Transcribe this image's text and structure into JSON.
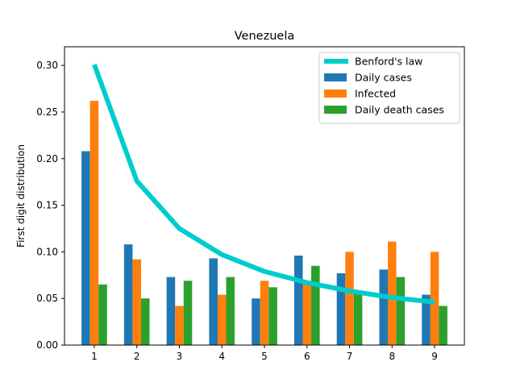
{
  "chart_data": {
    "type": "bar",
    "title": "Venezuela",
    "xlabel": "",
    "ylabel": "First digit distribution",
    "categories": [
      "1",
      "2",
      "3",
      "4",
      "5",
      "6",
      "7",
      "8",
      "9"
    ],
    "ylim": [
      0,
      0.32
    ],
    "yticks": [
      "0.00",
      "0.05",
      "0.10",
      "0.15",
      "0.20",
      "0.25",
      "0.30"
    ],
    "legend_position": "top-right",
    "series": [
      {
        "name": "Daily cases",
        "type": "bar",
        "color": "#1f77b4",
        "values": [
          0.208,
          0.108,
          0.073,
          0.093,
          0.05,
          0.096,
          0.077,
          0.081,
          0.054
        ]
      },
      {
        "name": "Infected",
        "type": "bar",
        "color": "#ff7f0e",
        "values": [
          0.262,
          0.092,
          0.042,
          0.054,
          0.069,
          0.069,
          0.1,
          0.111,
          0.1
        ]
      },
      {
        "name": "Daily death cases",
        "type": "bar",
        "color": "#2ca02c",
        "values": [
          0.065,
          0.05,
          0.069,
          0.073,
          0.062,
          0.085,
          0.058,
          0.073,
          0.042
        ]
      },
      {
        "name": "Benford's law",
        "type": "line",
        "color": "#00cccc",
        "values": [
          0.301,
          0.176,
          0.125,
          0.097,
          0.079,
          0.067,
          0.058,
          0.051,
          0.046
        ]
      }
    ]
  }
}
